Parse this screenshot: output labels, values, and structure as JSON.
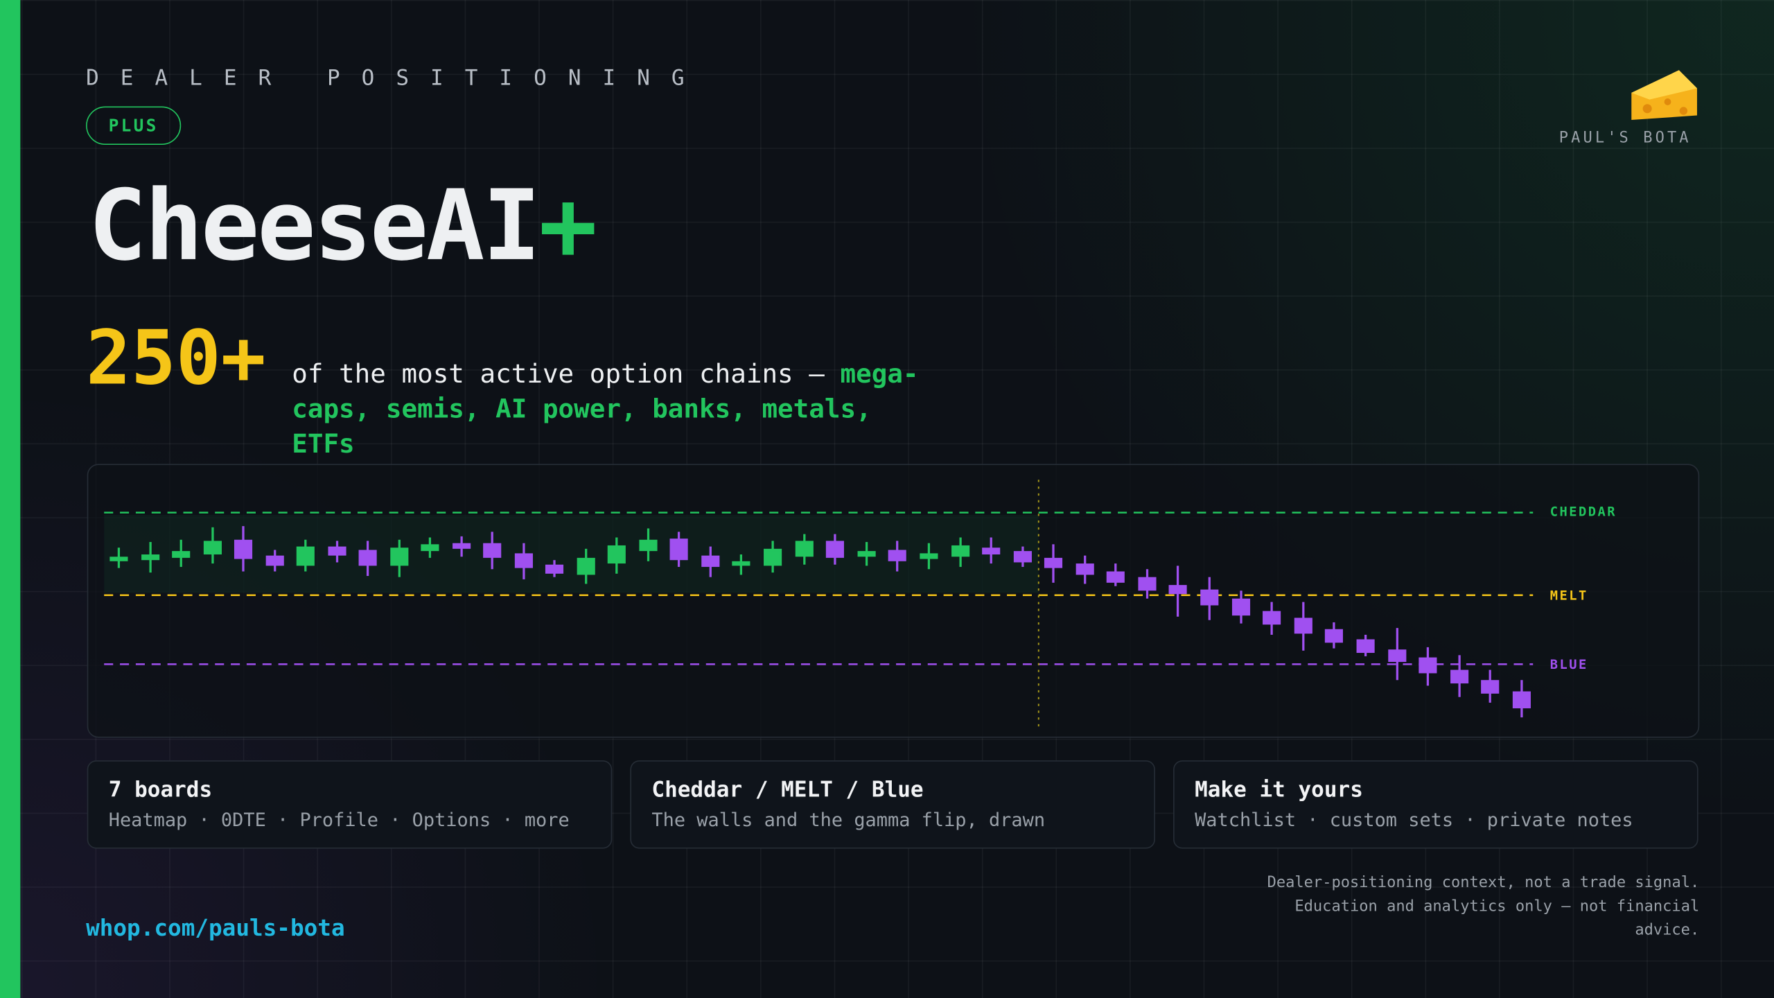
{
  "header": {
    "eyebrow": "DEALER POSITIONING",
    "badge": "PLUS",
    "title": "CheeseAI",
    "title_suffix": "+",
    "brand": "PAUL'S BOTA"
  },
  "hero": {
    "count": "250+",
    "text": "of the most active option chains — ",
    "highlight": "mega-caps, semis, AI power, banks, metals, ETFs"
  },
  "chart": {
    "levels": [
      "CHEDDAR",
      "MELT",
      "BLUE"
    ]
  },
  "cards": [
    {
      "title": "7 boards",
      "text": "Heatmap · 0DTE · Profile · Options · more"
    },
    {
      "title": "Cheddar / MELT / Blue",
      "text": "The walls and the gamma flip, drawn"
    },
    {
      "title": "Make it yours",
      "text": "Watchlist · custom sets · private notes"
    }
  ],
  "footer": {
    "url": "whop.com/pauls-bota",
    "disclaimer": "Dealer-positioning context, not a trade signal. Education and analytics only — not financial advice."
  }
}
